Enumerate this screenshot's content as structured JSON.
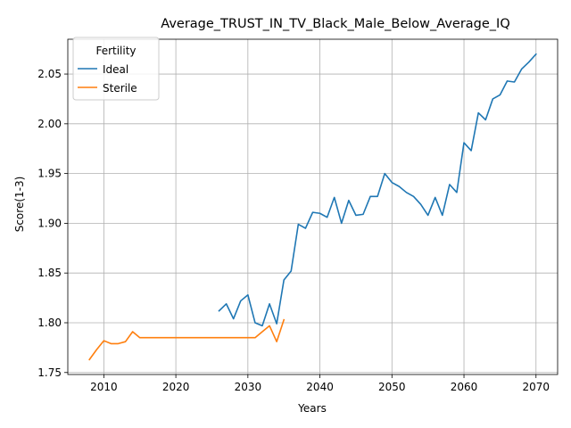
{
  "chart_data": {
    "type": "line",
    "title": "Average_TRUST_IN_TV_Black_Male_Below_Average_IQ",
    "xlabel": "Years",
    "ylabel": "Score(1-3)",
    "xlim": [
      2005,
      2073
    ],
    "ylim": [
      1.748,
      2.085
    ],
    "xticks": [
      2010,
      2020,
      2030,
      2040,
      2050,
      2060,
      2070
    ],
    "yticks": [
      1.75,
      1.8,
      1.85,
      1.9,
      1.95,
      2.0,
      2.05
    ],
    "xtick_labels": [
      "2010",
      "2020",
      "2030",
      "2040",
      "2050",
      "2060",
      "2070"
    ],
    "ytick_labels": [
      "1.75",
      "1.80",
      "1.85",
      "1.90",
      "1.95",
      "2.00",
      "2.05"
    ],
    "grid": true,
    "legend": {
      "title": "Fertility",
      "position": "top-left"
    },
    "series": [
      {
        "name": "Ideal",
        "color": "#1f77b4",
        "x": [
          2026,
          2027,
          2028,
          2029,
          2030,
          2031,
          2032,
          2033,
          2034,
          2035,
          2036,
          2037,
          2038,
          2039,
          2040,
          2041,
          2042,
          2043,
          2044,
          2045,
          2046,
          2047,
          2048,
          2049,
          2050,
          2051,
          2052,
          2053,
          2054,
          2055,
          2056,
          2057,
          2058,
          2059,
          2060,
          2061,
          2062,
          2063,
          2064,
          2065,
          2066,
          2067,
          2068,
          2069,
          2070
        ],
        "y": [
          1.812,
          1.819,
          1.804,
          1.822,
          1.828,
          1.8,
          1.797,
          1.819,
          1.799,
          1.843,
          1.852,
          1.899,
          1.895,
          1.911,
          1.91,
          1.906,
          1.926,
          1.9,
          1.923,
          1.908,
          1.909,
          1.927,
          1.927,
          1.95,
          1.941,
          1.937,
          1.931,
          1.927,
          1.919,
          1.908,
          1.926,
          1.908,
          1.939,
          1.931,
          1.981,
          1.973,
          2.011,
          2.004,
          2.025,
          2.029,
          2.043,
          2.042,
          2.055,
          2.062,
          2.07
        ]
      },
      {
        "name": "Sterile",
        "color": "#ff7f0e",
        "x": [
          2008,
          2009,
          2010,
          2011,
          2012,
          2013,
          2014,
          2015,
          2016,
          2017,
          2018,
          2019,
          2020,
          2021,
          2022,
          2023,
          2024,
          2025,
          2026,
          2027,
          2028,
          2029,
          2030,
          2031,
          2032,
          2033,
          2034,
          2035
        ],
        "y": [
          1.763,
          1.773,
          1.782,
          1.779,
          1.779,
          1.781,
          1.791,
          1.785,
          1.785,
          1.785,
          1.785,
          1.785,
          1.785,
          1.785,
          1.785,
          1.785,
          1.785,
          1.785,
          1.785,
          1.785,
          1.785,
          1.785,
          1.785,
          1.785,
          1.791,
          1.797,
          1.781,
          1.803
        ]
      }
    ]
  }
}
